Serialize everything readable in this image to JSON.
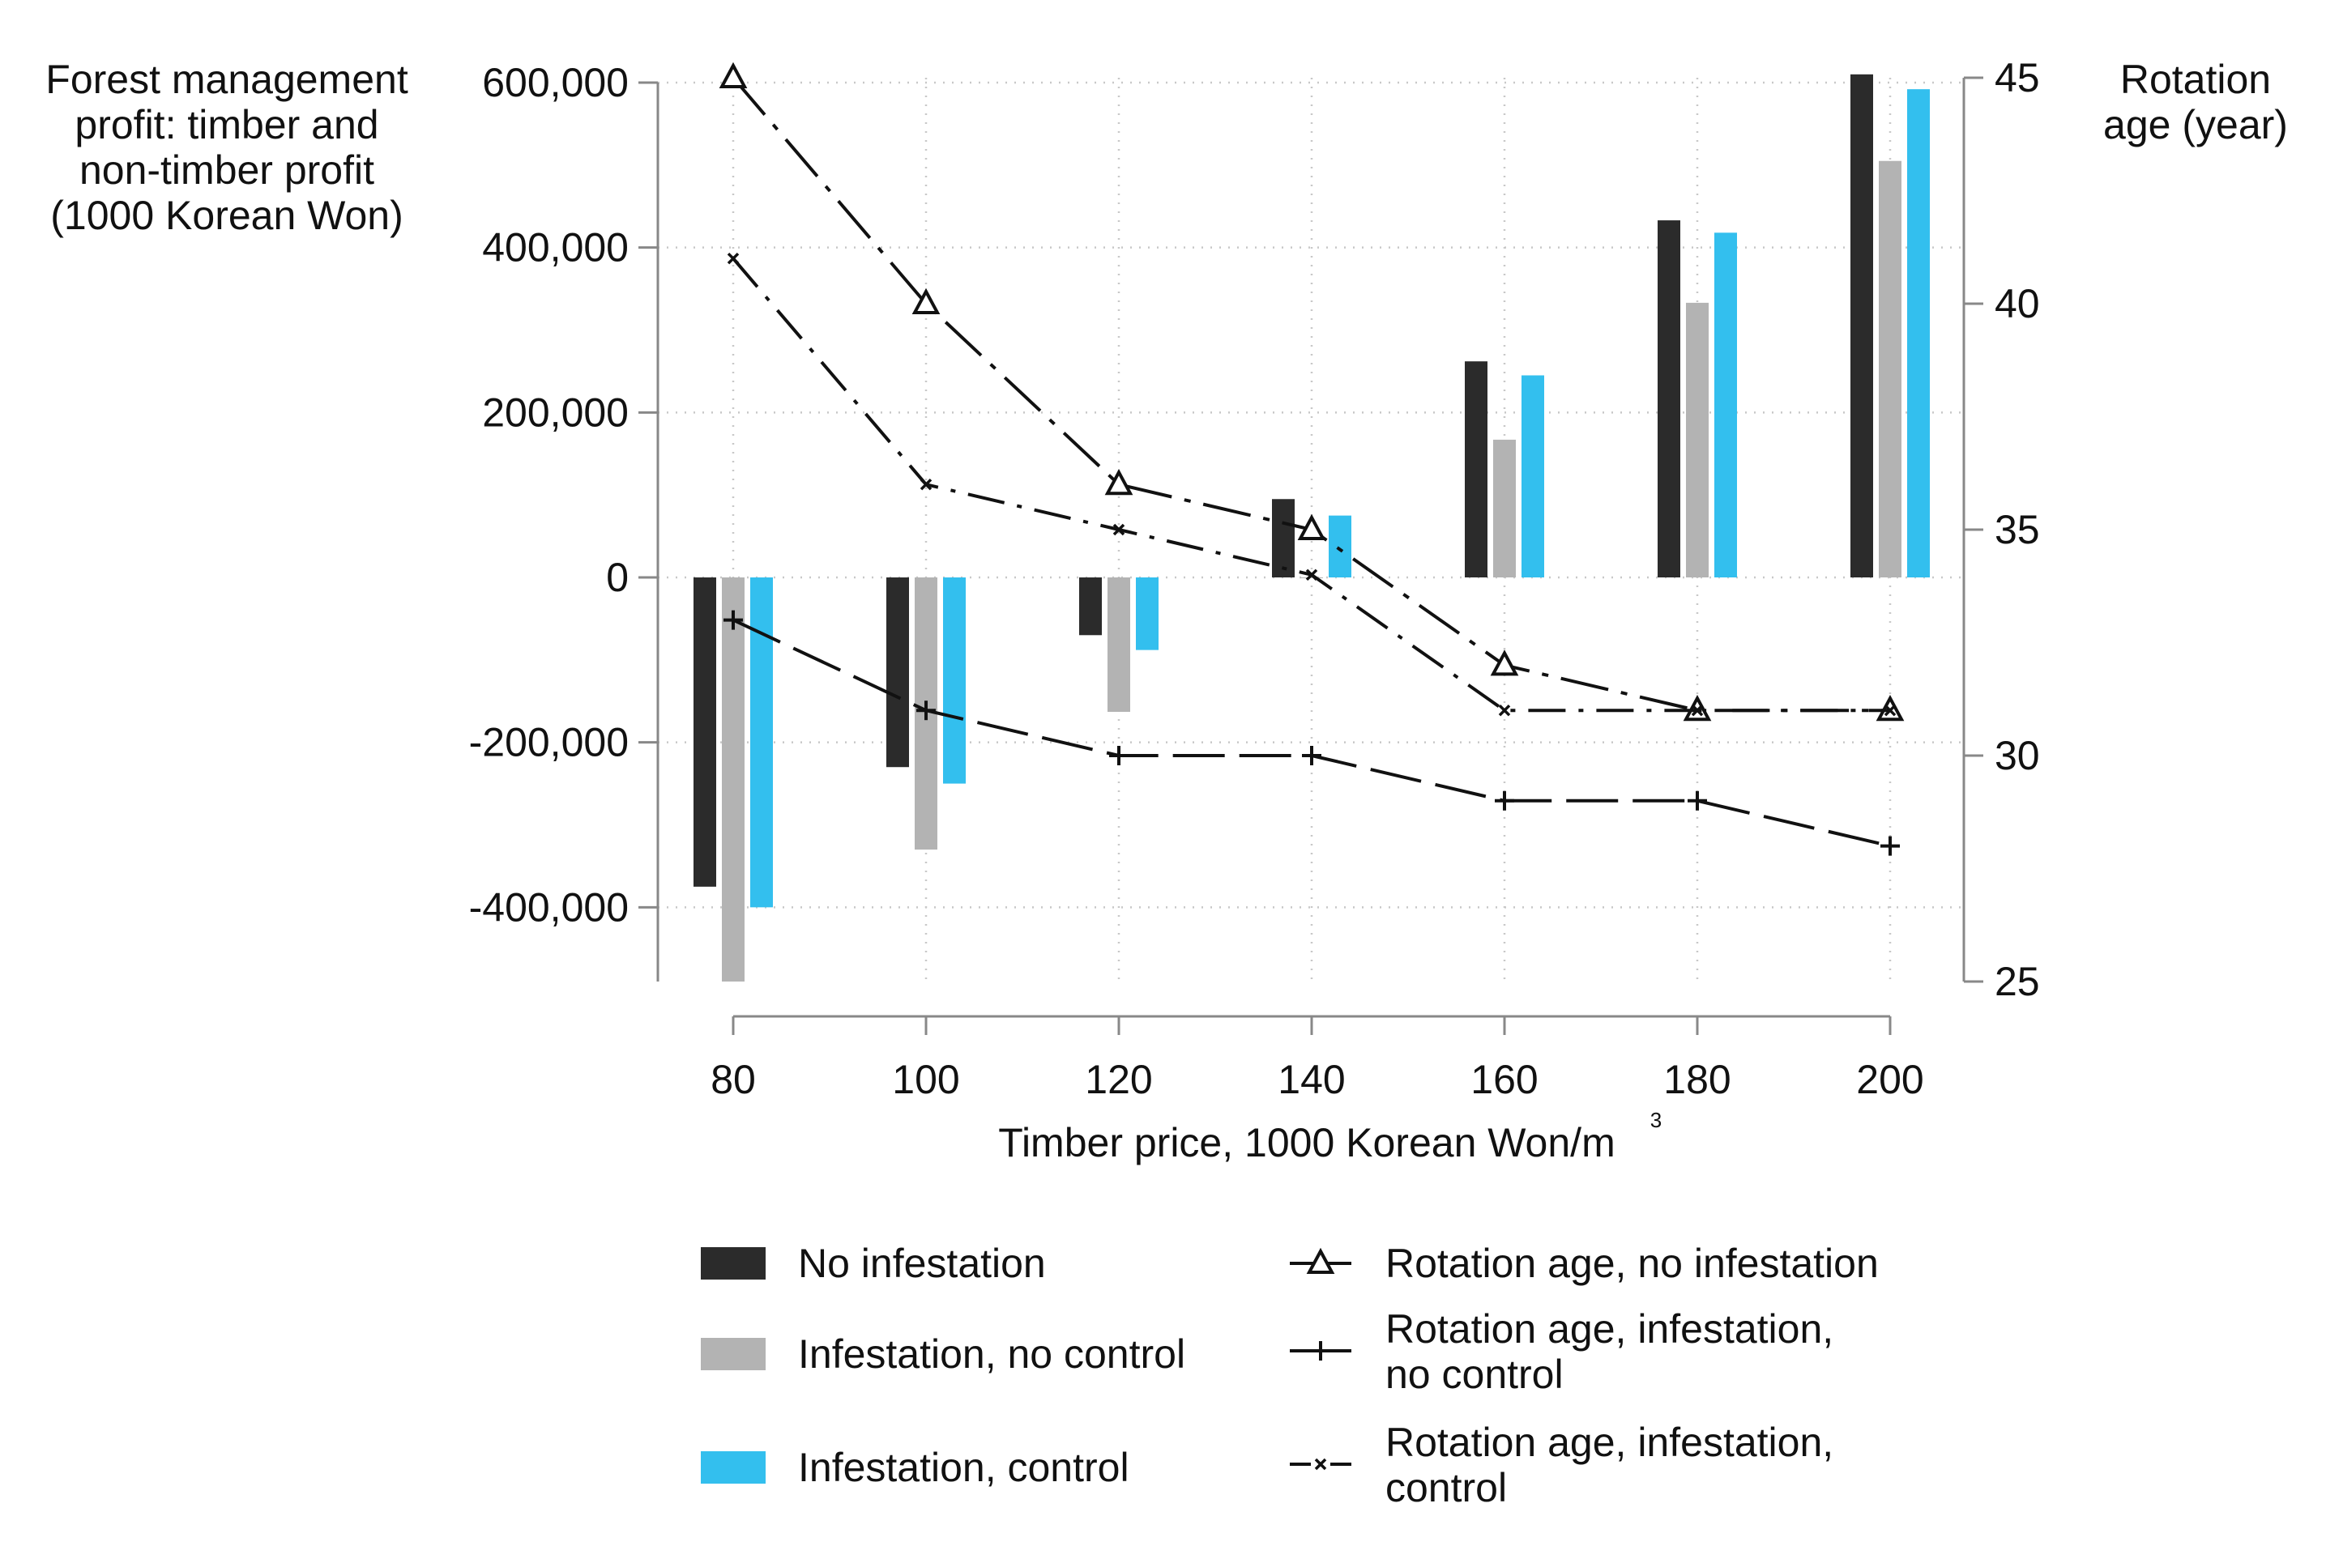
{
  "chart_data": {
    "type": "bar",
    "x_label": "Timber price, 1000 Korean Won/m",
    "x_label_sup": "3",
    "y_left_label": [
      "Forest management",
      "profit: timber and",
      "non-timber profit",
      "(1000 Korean Won)"
    ],
    "y_right_label": [
      "Rotation",
      "age (year)"
    ],
    "categories": [
      "80",
      "100",
      "120",
      "140",
      "160",
      "180",
      "200"
    ],
    "x_values": [
      80,
      100,
      120,
      140,
      160,
      180,
      200
    ],
    "y_left_range": [
      -490000,
      610000
    ],
    "y_left_ticks": [
      -400000,
      -200000,
      0,
      200000,
      400000,
      600000
    ],
    "y_left_tick_labels": [
      "-400,000",
      "-200,000",
      "0",
      "200,000",
      "400,000",
      "600,000"
    ],
    "y_right_range": [
      25,
      45
    ],
    "y_right_ticks": [
      25,
      30,
      35,
      40,
      45
    ],
    "y_right_tick_labels": [
      "25",
      "30",
      "35",
      "40",
      "45"
    ],
    "bar_series": [
      {
        "name": "No infestation",
        "color": "#2b2b2b",
        "values": [
          -375000,
          -230000,
          -70000,
          95000,
          262000,
          433000,
          610000
        ]
      },
      {
        "name": "Infestation, no control",
        "color": "#b3b3b3",
        "values": [
          -490000,
          -330000,
          -163000,
          0,
          167000,
          333000,
          505000
        ]
      },
      {
        "name": "Infestation, control",
        "color": "#33bfee",
        "values": [
          -400000,
          -250000,
          -88000,
          75000,
          245000,
          418000,
          592000
        ]
      }
    ],
    "line_series": [
      {
        "name": "Rotation age, no infestation",
        "marker": "triangle",
        "dash": "long-dash-dot",
        "values": [
          45,
          40,
          36,
          35,
          32,
          31,
          31
        ]
      },
      {
        "name": "Rotation age, infestation, no control",
        "marker": "plus",
        "dash": "long-dash",
        "values": [
          33,
          31,
          30,
          30,
          29,
          29,
          28
        ]
      },
      {
        "name": "Rotation age, infestation, control",
        "marker": "x",
        "dash": "dash-dot",
        "values": [
          41,
          36,
          35,
          34,
          31,
          31,
          31
        ]
      }
    ],
    "legend": {
      "placement": "bottom",
      "bar_labels": [
        "No infestation",
        "Infestation, no control",
        "Infestation, control"
      ],
      "line_labels": [
        [
          "Rotation age, no infestation"
        ],
        [
          "Rotation age, infestation,",
          "no control"
        ],
        [
          "Rotation age, infestation,",
          "control"
        ]
      ]
    },
    "grid": true
  }
}
